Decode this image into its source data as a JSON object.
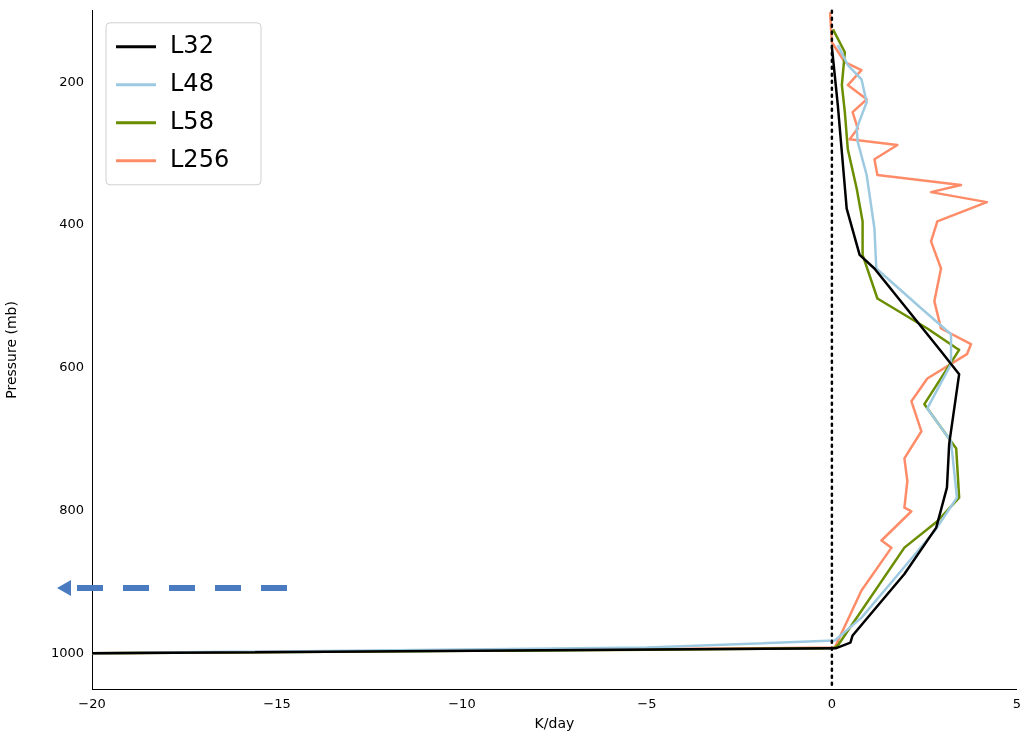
{
  "chart_data": {
    "type": "line",
    "xlabel": "K/day",
    "ylabel": "Pressure (mb)",
    "xlim": [
      -20,
      5
    ],
    "ylim": [
      1050,
      100
    ],
    "xticks": [
      {
        "value": -20,
        "label": "−20"
      },
      {
        "value": -15,
        "label": "−15"
      },
      {
        "value": -10,
        "label": "−10"
      },
      {
        "value": -5,
        "label": "−5"
      },
      0,
      5
    ],
    "yticks": [
      200,
      400,
      600,
      800,
      1000
    ],
    "grid": false,
    "legend": "top left",
    "marker": "none",
    "line_style": "solid",
    "ref_lines": [
      {
        "axis": "x",
        "value": 0,
        "color": "#000000",
        "line_style": "dotted"
      }
    ],
    "series": [
      {
        "name": "L32",
        "color": "#000000",
        "x": [
          0,
          0.16,
          0.4,
          0.75,
          1.15,
          2.95,
          3.44,
          3.17,
          3.11,
          2.82,
          1.96,
          0.56,
          0.5,
          0.1,
          -20
        ],
        "values": [
          151,
          232,
          377,
          442,
          461,
          577,
          609,
          707,
          768,
          824,
          889,
          975,
          985,
          993,
          1000
        ]
      },
      {
        "name": "L48",
        "color": "#9ecae1",
        "x": [
          0.16,
          0.43,
          0.8,
          0.94,
          0.67,
          0.7,
          0.94,
          1.15,
          1.2,
          2.42,
          3.22,
          3.22,
          2.58,
          3.22,
          3.38,
          2.77,
          1.88,
          0.8,
          0.08,
          -5,
          -20
        ],
        "values": [
          148,
          176,
          196,
          228,
          265,
          284,
          330,
          405,
          461,
          517,
          553,
          595,
          657,
          703,
          782,
          829,
          884,
          950,
          982,
          992,
          1000
        ]
      },
      {
        "name": "L58",
        "color": "#6b8e00",
        "x": [
          0.03,
          0.35,
          0.27,
          0.35,
          0.43,
          0.67,
          0.83,
          0.83,
          1.23,
          2.58,
          3.38,
          3.44,
          2.5,
          3.36,
          3.44,
          2.85,
          1.96,
          0.16,
          0.03,
          -5,
          -20
        ],
        "values": [
          126,
          158,
          204,
          242,
          294,
          349,
          395,
          442,
          503,
          545,
          573,
          575,
          651,
          713,
          782,
          815,
          852,
          989,
          993,
          995,
          1000
        ]
      },
      {
        "name": "L256",
        "color": "#ff8c69",
        "x": [
          -0.05,
          0,
          0.35,
          0.8,
          0.43,
          0.94,
          0.56,
          0.7,
          0.48,
          1.77,
          1.15,
          1.23,
          3.49,
          2.68,
          4.19,
          2.85,
          2.68,
          2.95,
          2.77,
          2.95,
          3.76,
          3.65,
          2.58,
          2.15,
          2.42,
          1.96,
          2.04,
          1.96,
          2.15,
          1.34,
          1.61,
          0.8,
          0.08,
          -20
        ],
        "values": [
          102,
          144,
          172,
          183,
          204,
          224,
          242,
          265,
          280,
          288,
          308,
          330,
          344,
          354,
          368,
          395,
          423,
          461,
          507,
          545,
          567,
          581,
          615,
          647,
          689,
          727,
          759,
          796,
          801,
          842,
          852,
          912,
          992,
          1000
        ]
      }
    ]
  }
}
